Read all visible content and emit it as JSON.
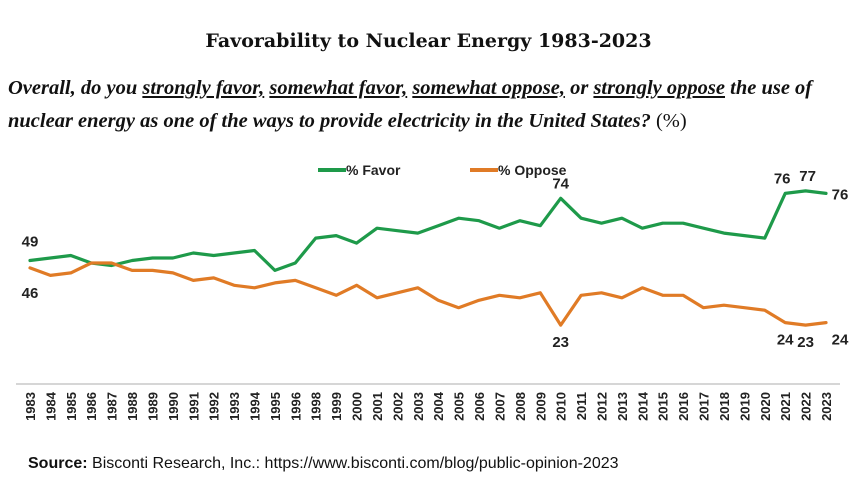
{
  "title": "Favorability to Nuclear Energy 1983-2023",
  "question": {
    "p1": "Overall, do you ",
    "opt1": "strongly favor,",
    "p2": " ",
    "opt2": "somewhat favor,",
    "p3": " ",
    "opt3": "somewhat oppose,",
    "p4": " or ",
    "opt4": "strongly oppose",
    "p5": " the use of nuclear energy as one of the ways to provide electricity in the United States? ",
    "pct": "(%)"
  },
  "source": {
    "label": "Source:",
    "text": " Bisconti Research, Inc.: https://www.bisconti.com/blog/public-opinion-2023"
  },
  "chart_data": {
    "type": "line",
    "x": [
      "1983",
      "1984",
      "1985",
      "1986",
      "1987",
      "1988",
      "1989",
      "1990",
      "1991",
      "1992",
      "1993",
      "1994",
      "1995",
      "1996",
      "1998",
      "1999",
      "2000",
      "2001",
      "2002",
      "2003",
      "2004",
      "2005",
      "2006",
      "2007",
      "2008",
      "2009",
      "2010",
      "2011",
      "2012",
      "2013",
      "2014",
      "2015",
      "2016",
      "2017",
      "2018",
      "2019",
      "2020",
      "2021",
      "2022",
      "2023"
    ],
    "ylim": [
      15,
      85
    ],
    "legend_position": "top-center",
    "grid": false,
    "series": [
      {
        "name": "% Favor",
        "color": "#1e9a4a",
        "values": [
          49,
          50,
          51,
          48,
          47,
          49,
          50,
          50,
          52,
          51,
          52,
          53,
          45,
          48,
          58,
          59,
          56,
          62,
          61,
          60,
          63,
          66,
          65,
          62,
          65,
          63,
          74,
          66,
          64,
          66,
          62,
          64,
          64,
          62,
          60,
          59,
          58,
          76,
          77,
          76
        ],
        "labels": [
          {
            "index": 0,
            "text": "49"
          },
          {
            "index": 26,
            "text": "74"
          },
          {
            "index": 37,
            "text": "76"
          },
          {
            "index": 38,
            "text": "77"
          },
          {
            "index": 39,
            "text": "76"
          }
        ]
      },
      {
        "name": "% Oppose",
        "color": "#e07b26",
        "values": [
          46,
          43,
          44,
          48,
          48,
          45,
          45,
          44,
          41,
          42,
          39,
          38,
          40,
          41,
          38,
          35,
          39,
          34,
          36,
          38,
          33,
          30,
          33,
          35,
          34,
          36,
          23,
          35,
          36,
          34,
          38,
          35,
          35,
          30,
          31,
          30,
          29,
          24,
          23,
          24
        ],
        "labels": [
          {
            "index": 0,
            "text": "46"
          },
          {
            "index": 26,
            "text": "23"
          },
          {
            "index": 37,
            "text": "24"
          },
          {
            "index": 38,
            "text": "23"
          },
          {
            "index": 39,
            "text": "24"
          }
        ]
      }
    ]
  }
}
